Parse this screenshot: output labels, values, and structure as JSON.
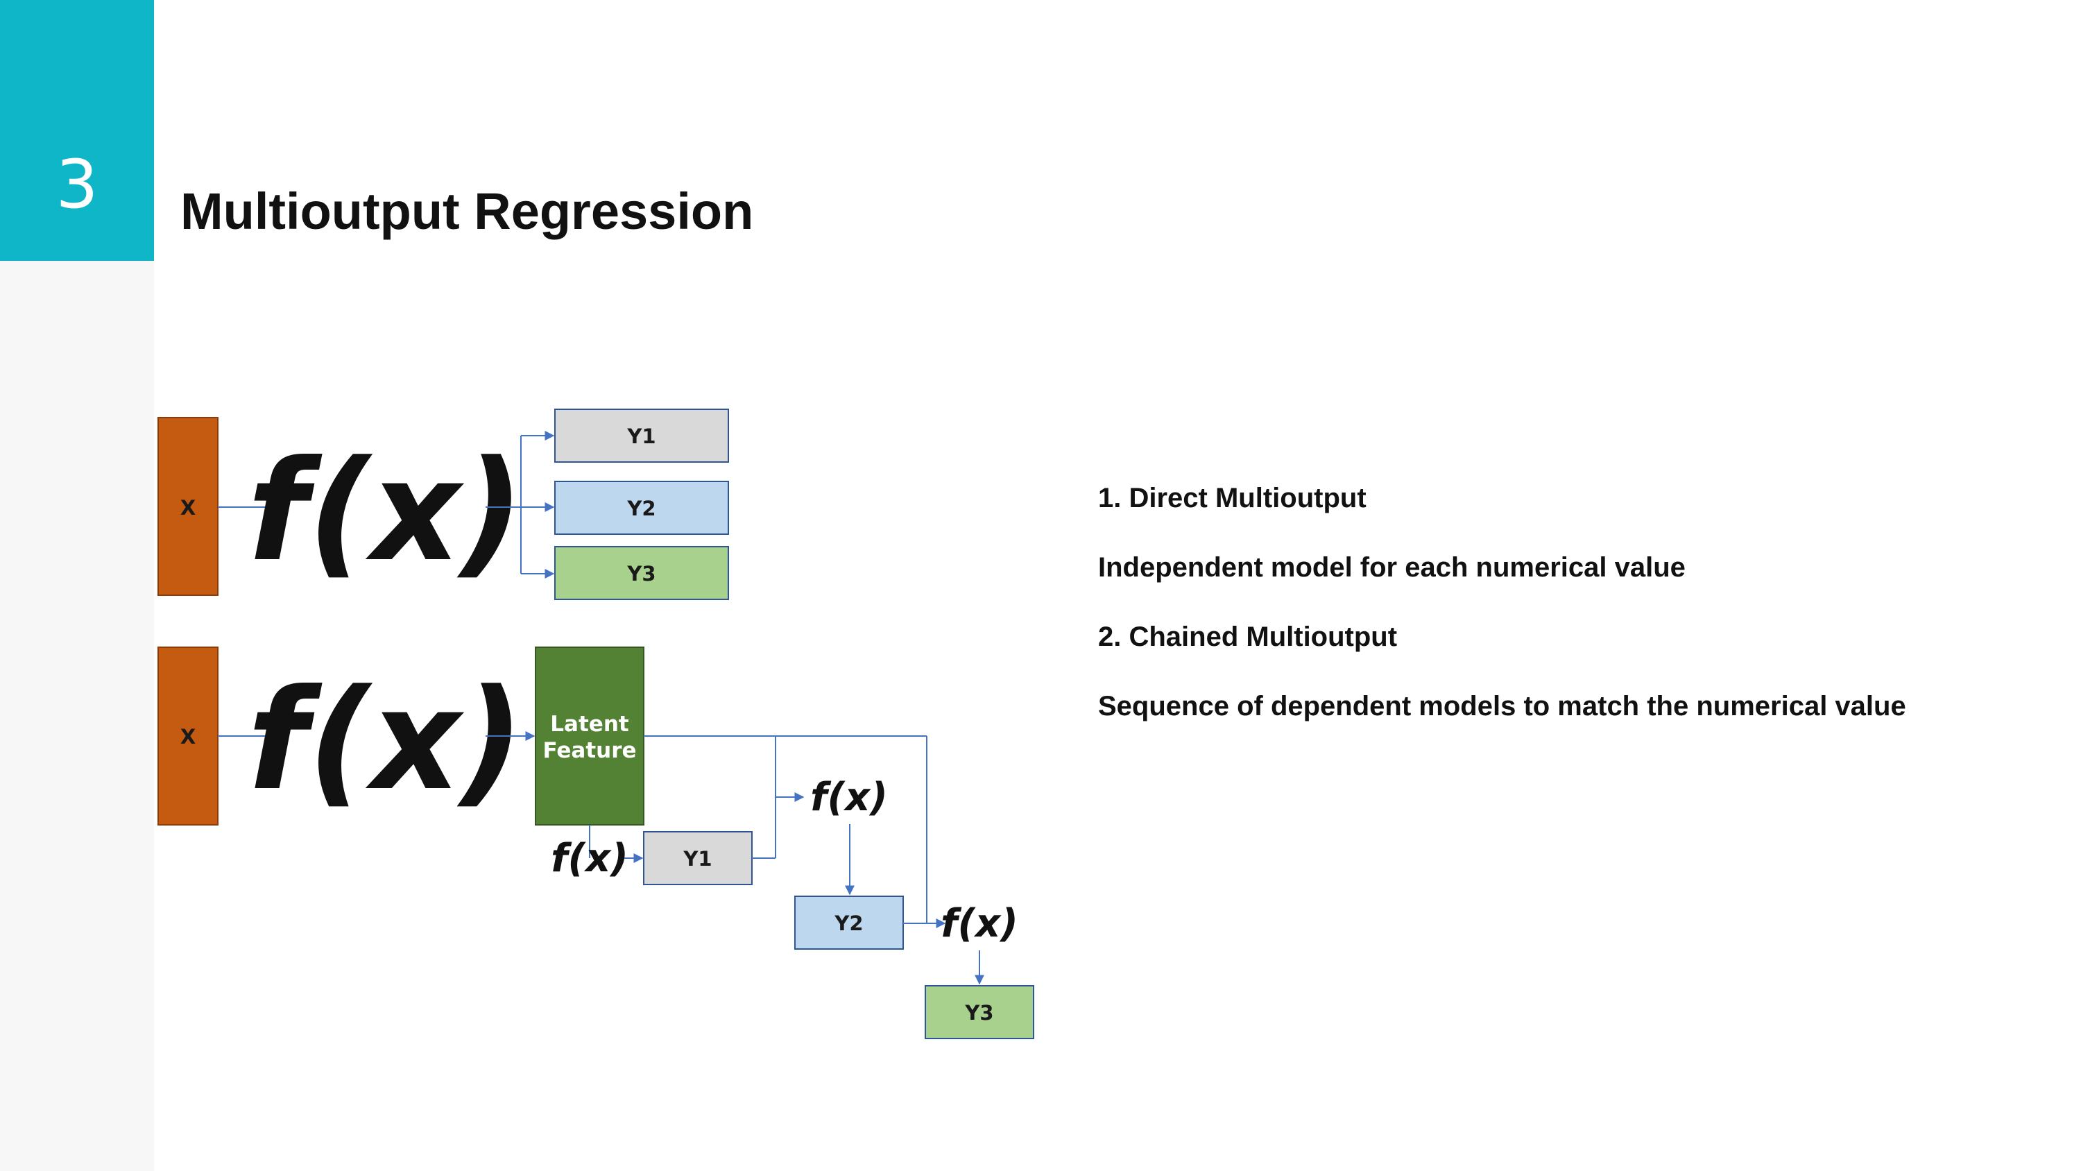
{
  "slide": {
    "number": "3",
    "title": "Multioutput Regression"
  },
  "colors": {
    "accent_teal": "#0fb6c7",
    "input_box": "#c55a11",
    "latent_box": "#548235",
    "y1_box": "#d9d9d9",
    "y2_box": "#bdd7ee",
    "y3_box": "#a9d18e",
    "connector": "#4472c4"
  },
  "diagram": {
    "direct": {
      "input": "X",
      "function": "f(x)",
      "outputs": [
        "Y1",
        "Y2",
        "Y3"
      ]
    },
    "chained": {
      "input": "X",
      "function": "f(x)",
      "latent": [
        "Latent",
        "Feature"
      ],
      "step_function": "f(x)",
      "outputs": [
        "Y1",
        "Y2",
        "Y3"
      ]
    }
  },
  "description": {
    "direct_title": "1. Direct Multioutput",
    "direct_text": "Independent model for each numerical value",
    "chained_title": "2. Chained Multioutput",
    "chained_text": "Sequence of dependent models to match the numerical value"
  }
}
